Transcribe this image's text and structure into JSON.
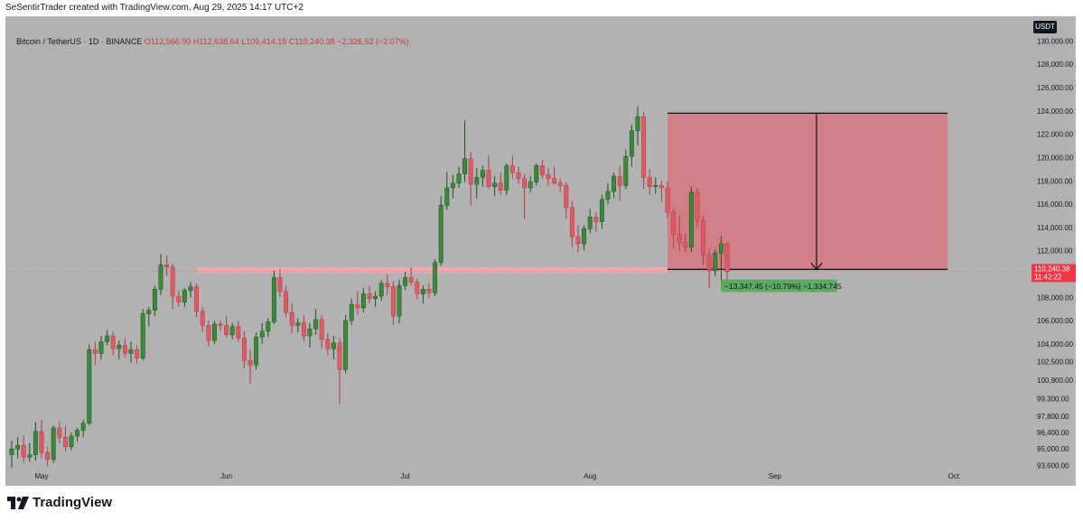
{
  "header": {
    "text": "SeSentirTrader created with TradingView.com, Aug 29, 2025 14:17 UTC+2"
  },
  "legend": {
    "symbol": "Bitcoin / TetherUS · 1D · BINANCE",
    "open": "O112,566.90",
    "high": "H112,638.64",
    "low": "L109,414.18",
    "close": "C110,240.38",
    "change": "−2,326.52 (−2.07%)"
  },
  "currency_badge": "USDT",
  "footer": {
    "brand": "TradingView"
  },
  "colors": {
    "up": "#3b8a3b",
    "down": "#e05a63",
    "zone": "#d6747f",
    "support": "#f5a8ae",
    "measure_bg": "#5daa62",
    "price_badge": "#f23645"
  },
  "chart_data": {
    "type": "candlestick",
    "ylim": [
      93000,
      131500
    ],
    "y_ticks": [
      "130,000.00",
      "128,000.00",
      "126,000.00",
      "124,000.00",
      "122,000.00",
      "120,000.00",
      "118,000.00",
      "116,000.00",
      "114,000.00",
      "112,000.00",
      "110,000.00",
      "108,000.00",
      "106,000.00",
      "104,000.00",
      "102,500.00",
      "100,900.00",
      "99,300.00",
      "97,800.00",
      "96,400.00",
      "95,000.00",
      "93,600.00"
    ],
    "x_labels": [
      {
        "label": "May",
        "date": "2025-05-01"
      },
      {
        "label": "Jun",
        "date": "2025-06-01"
      },
      {
        "label": "Jul",
        "date": "2025-07-01"
      },
      {
        "label": "Aug",
        "date": "2025-08-01"
      },
      {
        "label": "Sep",
        "date": "2025-09-01"
      },
      {
        "label": "Oct",
        "date": "2025-10-01"
      }
    ],
    "start_date": "2025-04-26",
    "candles": [
      [
        94500,
        95700,
        93400,
        95000
      ],
      [
        95000,
        96000,
        94200,
        95300
      ],
      [
        95300,
        96200,
        93800,
        94300
      ],
      [
        94300,
        95500,
        93900,
        94500
      ],
      [
        94500,
        97300,
        94000,
        96500
      ],
      [
        96500,
        97500,
        94200,
        94700
      ],
      [
        94700,
        95200,
        93500,
        94100
      ],
      [
        94100,
        97000,
        93800,
        96800
      ],
      [
        96800,
        97400,
        95500,
        96000
      ],
      [
        96000,
        97000,
        94800,
        95200
      ],
      [
        95200,
        96400,
        94900,
        96100
      ],
      [
        96100,
        96800,
        95600,
        96600
      ],
      [
        96600,
        97500,
        96000,
        97200
      ],
      [
        97200,
        104000,
        97000,
        103500
      ],
      [
        103500,
        104200,
        102200,
        103200
      ],
      [
        103200,
        104700,
        102700,
        104200
      ],
      [
        104200,
        105200,
        103900,
        104700
      ],
      [
        104700,
        105100,
        103000,
        103600
      ],
      [
        103600,
        104300,
        102700,
        103900
      ],
      [
        103900,
        104500,
        102800,
        103200
      ],
      [
        103200,
        104200,
        102400,
        103500
      ],
      [
        103500,
        103900,
        102300,
        102800
      ],
      [
        102800,
        107000,
        102600,
        106600
      ],
      [
        106600,
        107200,
        105500,
        106900
      ],
      [
        106900,
        109000,
        106400,
        108700
      ],
      [
        108700,
        111700,
        108200,
        110800
      ],
      [
        110800,
        111600,
        109800,
        110600
      ],
      [
        110600,
        110900,
        107000,
        108100
      ],
      [
        108100,
        108600,
        107200,
        107600
      ],
      [
        107600,
        108800,
        107200,
        108600
      ],
      [
        108600,
        109300,
        108000,
        108900
      ],
      [
        108900,
        109200,
        106300,
        106800
      ],
      [
        106800,
        107200,
        105000,
        105600
      ],
      [
        105600,
        106000,
        103800,
        104300
      ],
      [
        104300,
        106000,
        104000,
        105700
      ],
      [
        105700,
        106000,
        105100,
        105600
      ],
      [
        105600,
        106400,
        104600,
        104800
      ],
      [
        104800,
        105800,
        104400,
        105500
      ],
      [
        105500,
        106000,
        104200,
        104500
      ],
      [
        104500,
        105100,
        101900,
        102600
      ],
      [
        102600,
        103500,
        100600,
        102200
      ],
      [
        102200,
        105000,
        101800,
        104600
      ],
      [
        104600,
        105800,
        104000,
        105100
      ],
      [
        105100,
        106200,
        104600,
        105900
      ],
      [
        105900,
        110300,
        105700,
        109700
      ],
      [
        109700,
        110400,
        108000,
        108500
      ],
      [
        108500,
        109000,
        106300,
        106700
      ],
      [
        106700,
        107500,
        104900,
        105600
      ],
      [
        105600,
        106200,
        105000,
        105800
      ],
      [
        105800,
        106500,
        104200,
        104700
      ],
      [
        104700,
        105800,
        103700,
        105300
      ],
      [
        105300,
        107000,
        104800,
        106100
      ],
      [
        106100,
        106500,
        103600,
        104400
      ],
      [
        104400,
        104900,
        103000,
        103600
      ],
      [
        103600,
        104700,
        102700,
        104100
      ],
      [
        104100,
        104500,
        98800,
        101800
      ],
      [
        101800,
        106500,
        101500,
        106000
      ],
      [
        106000,
        107900,
        105600,
        107400
      ],
      [
        107400,
        108500,
        106500,
        107100
      ],
      [
        107100,
        108800,
        106700,
        108300
      ],
      [
        108300,
        109000,
        107500,
        107900
      ],
      [
        107900,
        108500,
        107200,
        108100
      ],
      [
        108100,
        109500,
        107700,
        109200
      ],
      [
        109200,
        110000,
        108200,
        108900
      ],
      [
        108900,
        109400,
        105600,
        106400
      ],
      [
        106400,
        109500,
        105800,
        109000
      ],
      [
        109000,
        110200,
        108600,
        109700
      ],
      [
        109700,
        110600,
        109000,
        109300
      ],
      [
        109300,
        109600,
        107800,
        108300
      ],
      [
        108300,
        109000,
        107500,
        108700
      ],
      [
        108700,
        109200,
        107900,
        108400
      ],
      [
        108400,
        111300,
        108100,
        111000
      ],
      [
        111000,
        116700,
        110700,
        115900
      ],
      [
        115900,
        118800,
        115500,
        117400
      ],
      [
        117400,
        118500,
        116500,
        117800
      ],
      [
        117800,
        119200,
        117400,
        118600
      ],
      [
        118600,
        123200,
        117900,
        119900
      ],
      [
        119900,
        120500,
        115900,
        117700
      ],
      [
        117700,
        119100,
        116500,
        118300
      ],
      [
        118300,
        119300,
        117500,
        118900
      ],
      [
        118900,
        120200,
        117300,
        117500
      ],
      [
        117500,
        118400,
        116700,
        117800
      ],
      [
        117800,
        118700,
        116800,
        117200
      ],
      [
        117200,
        119500,
        116800,
        119300
      ],
      [
        119300,
        120200,
        118200,
        118700
      ],
      [
        118700,
        119200,
        117700,
        118200
      ],
      [
        118200,
        118600,
        114700,
        117400
      ],
      [
        117400,
        118400,
        117000,
        117900
      ],
      [
        117900,
        119500,
        117600,
        119300
      ],
      [
        119300,
        119800,
        118200,
        118500
      ],
      [
        118500,
        119100,
        117600,
        118200
      ],
      [
        118200,
        119200,
        117700,
        117800
      ],
      [
        117800,
        118200,
        117000,
        117600
      ],
      [
        117600,
        117900,
        114700,
        115700
      ],
      [
        115700,
        116300,
        112300,
        113200
      ],
      [
        113200,
        114200,
        111900,
        112600
      ],
      [
        112600,
        114200,
        112000,
        113900
      ],
      [
        113900,
        115600,
        113500,
        114900
      ],
      [
        114900,
        115300,
        113600,
        114500
      ],
      [
        114500,
        116800,
        113900,
        116400
      ],
      [
        116400,
        117800,
        116000,
        117100
      ],
      [
        117100,
        118700,
        116500,
        118400
      ],
      [
        118400,
        119300,
        116300,
        117600
      ],
      [
        117600,
        120700,
        117300,
        120100
      ],
      [
        120100,
        122800,
        119200,
        122300
      ],
      [
        122300,
        124400,
        121000,
        123500
      ],
      [
        123500,
        123900,
        117300,
        118300
      ],
      [
        118300,
        119000,
        116800,
        117500
      ],
      [
        117500,
        118300,
        116900,
        117600
      ],
      [
        117600,
        118000,
        116200,
        117400
      ],
      [
        117400,
        117900,
        114800,
        115300
      ],
      [
        115300,
        115600,
        112200,
        113400
      ],
      [
        113400,
        115000,
        112000,
        112700
      ],
      [
        112700,
        113500,
        111900,
        112300
      ],
      [
        112300,
        117500,
        111900,
        117000
      ],
      [
        117000,
        117400,
        114000,
        114600
      ],
      [
        114600,
        115000,
        110800,
        111600
      ],
      [
        111600,
        112200,
        108800,
        110300
      ],
      [
        110300,
        112100,
        109800,
        111800
      ],
      [
        111800,
        113300,
        109400,
        112600
      ],
      [
        112600,
        112700,
        109400,
        110200
      ]
    ],
    "drawings": {
      "resistance_zone": {
        "from": "2025-08-14",
        "to": "2025-09-30",
        "top": 123800,
        "bottom": 110400
      },
      "support_band": {
        "from": "2025-05-27",
        "to": "2025-08-14",
        "top": 110600,
        "bottom": 110100
      },
      "target_arrow": {
        "date": "2025-09-08",
        "from": 123800,
        "to": 110400
      },
      "measurement_label": "−13,347.45 (−10.79%) −1,334,745",
      "last_price": "110,240.38",
      "countdown": "11:42:22"
    }
  }
}
